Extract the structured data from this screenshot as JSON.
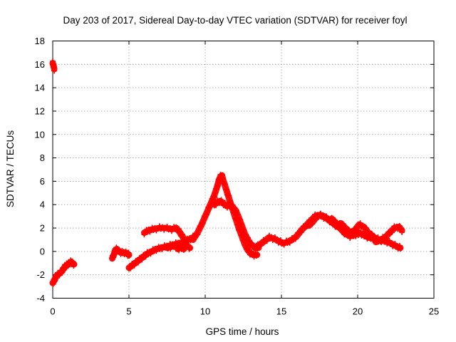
{
  "chart_data": {
    "type": "scatter",
    "title": "Day 203 of 2017, Sidereal Day-to-day VTEC variation (SDTVAR) for receiver foyl",
    "xlabel": "GPS time / hours",
    "ylabel": "SDTVAR / TECUs",
    "xlim": [
      0,
      25
    ],
    "ylim": [
      -4,
      18
    ],
    "xticks": [
      0,
      5,
      10,
      15,
      20,
      25
    ],
    "yticks": [
      -4,
      -2,
      0,
      2,
      4,
      6,
      8,
      10,
      12,
      14,
      16,
      18
    ],
    "grid": true,
    "marker": "plus",
    "color": "#ff0000",
    "series": [
      {
        "name": "receiver foyl",
        "segments": [
          {
            "x": [
              0.0,
              0.05,
              0.1
            ],
            "y": [
              16.1,
              15.9,
              15.6
            ]
          },
          {
            "x": [
              0.0,
              0.1,
              0.2,
              0.3,
              0.45,
              0.6,
              0.7,
              0.8,
              0.9,
              1.0,
              1.1,
              1.2,
              1.3,
              1.4
            ],
            "y": [
              -2.7,
              -2.5,
              -2.2,
              -2.0,
              -1.9,
              -1.7,
              -1.5,
              -1.3,
              -1.2,
              -1.1,
              -1.0,
              -0.9,
              -1.0,
              -1.1
            ]
          },
          {
            "x": [
              3.9,
              4.0,
              4.1,
              4.2,
              4.35,
              4.5,
              4.7,
              4.9,
              5.0
            ],
            "y": [
              -0.6,
              -0.3,
              0.1,
              0.2,
              0.0,
              -0.1,
              -0.1,
              -0.2,
              -0.3
            ]
          },
          {
            "x": [
              5.0,
              5.2,
              5.4,
              5.6,
              5.8,
              6.0,
              6.2,
              6.5,
              6.8,
              7.1,
              7.4,
              7.7,
              8.0,
              8.3,
              8.6,
              8.9,
              9.2
            ],
            "y": [
              -1.4,
              -1.2,
              -1.0,
              -0.8,
              -0.6,
              -0.4,
              -0.2,
              0.0,
              0.2,
              0.3,
              0.4,
              0.5,
              0.6,
              0.7,
              0.8,
              1.0,
              1.2
            ]
          },
          {
            "x": [
              6.0,
              6.3,
              6.6,
              7.0,
              7.4,
              7.8,
              8.1,
              8.3,
              8.5,
              8.7
            ],
            "y": [
              1.6,
              1.8,
              1.9,
              2.0,
              2.0,
              1.9,
              2.0,
              1.7,
              1.3,
              0.9
            ]
          },
          {
            "x": [
              7.5,
              7.8,
              8.1,
              8.4,
              8.6
            ],
            "y": [
              0.3,
              0.4,
              0.5,
              0.4,
              0.2
            ]
          },
          {
            "x": [
              8.2,
              8.5,
              8.8,
              9.0
            ],
            "y": [
              0.2,
              0.4,
              0.5,
              0.3
            ]
          },
          {
            "x": [
              9.2,
              9.5,
              9.8,
              10.0,
              10.2,
              10.4,
              10.6,
              10.8,
              10.9,
              11.0,
              11.1,
              11.2,
              11.4,
              11.6,
              11.8,
              12.0,
              12.2,
              12.4,
              12.6,
              12.8,
              13.0,
              13.2,
              13.4
            ],
            "y": [
              1.0,
              1.6,
              2.4,
              3.0,
              3.6,
              4.2,
              4.8,
              5.6,
              6.1,
              6.4,
              6.5,
              6.0,
              5.2,
              4.4,
              3.6,
              2.8,
              2.0,
              1.3,
              0.6,
              0.1,
              -0.2,
              -0.3,
              -0.3
            ]
          },
          {
            "x": [
              10.6,
              10.8,
              11.0,
              11.2,
              11.4,
              11.6,
              11.8,
              12.0,
              12.2,
              12.4,
              12.6,
              12.8,
              13.0,
              13.2,
              13.5
            ],
            "y": [
              4.0,
              4.2,
              4.3,
              4.1,
              3.9,
              3.9,
              3.8,
              3.5,
              2.9,
              2.2,
              1.5,
              1.0,
              0.6,
              0.4,
              0.3
            ]
          },
          {
            "x": [
              13.3,
              13.6,
              13.9,
              14.2,
              14.5,
              14.8,
              15.1,
              15.4,
              15.7,
              16.0,
              16.3,
              16.6,
              16.9,
              17.2,
              17.5,
              17.8,
              18.1,
              18.4,
              18.7,
              19.0,
              19.3,
              19.6,
              19.9,
              20.2,
              20.5,
              20.8,
              21.1,
              21.4,
              21.7,
              22.0,
              22.3,
              22.6,
              22.8
            ],
            "y": [
              0.3,
              0.6,
              0.9,
              1.2,
              1.1,
              0.9,
              0.7,
              0.8,
              1.0,
              1.3,
              1.8,
              2.2,
              2.6,
              3.0,
              3.1,
              3.0,
              2.7,
              2.4,
              2.1,
              1.9,
              1.7,
              1.6,
              1.6,
              1.5,
              1.4,
              1.3,
              1.2,
              1.0,
              0.9,
              0.8,
              0.6,
              0.4,
              0.3
            ]
          },
          {
            "x": [
              16.8,
              17.1,
              17.4,
              17.7,
              18.0,
              18.3,
              18.6,
              18.9,
              19.2,
              19.5,
              19.8,
              20.1,
              20.4,
              20.7,
              21.0
            ],
            "y": [
              2.2,
              2.6,
              3.1,
              3.0,
              2.8,
              2.5,
              2.2,
              2.4,
              2.0,
              1.6,
              1.8,
              2.3,
              2.1,
              1.6,
              1.3
            ]
          },
          {
            "x": [
              18.3,
              18.6,
              18.9,
              19.2,
              19.5,
              19.8,
              20.1,
              20.4,
              20.7,
              21.0
            ],
            "y": [
              2.8,
              2.4,
              1.9,
              1.5,
              1.3,
              1.4,
              1.6,
              1.4,
              1.2,
              1.1
            ]
          },
          {
            "x": [
              21.2,
              21.5,
              21.8,
              22.1,
              22.4,
              22.7,
              22.9
            ],
            "y": [
              0.8,
              1.0,
              1.2,
              1.6,
              2.0,
              2.1,
              1.8
            ]
          }
        ]
      }
    ]
  }
}
